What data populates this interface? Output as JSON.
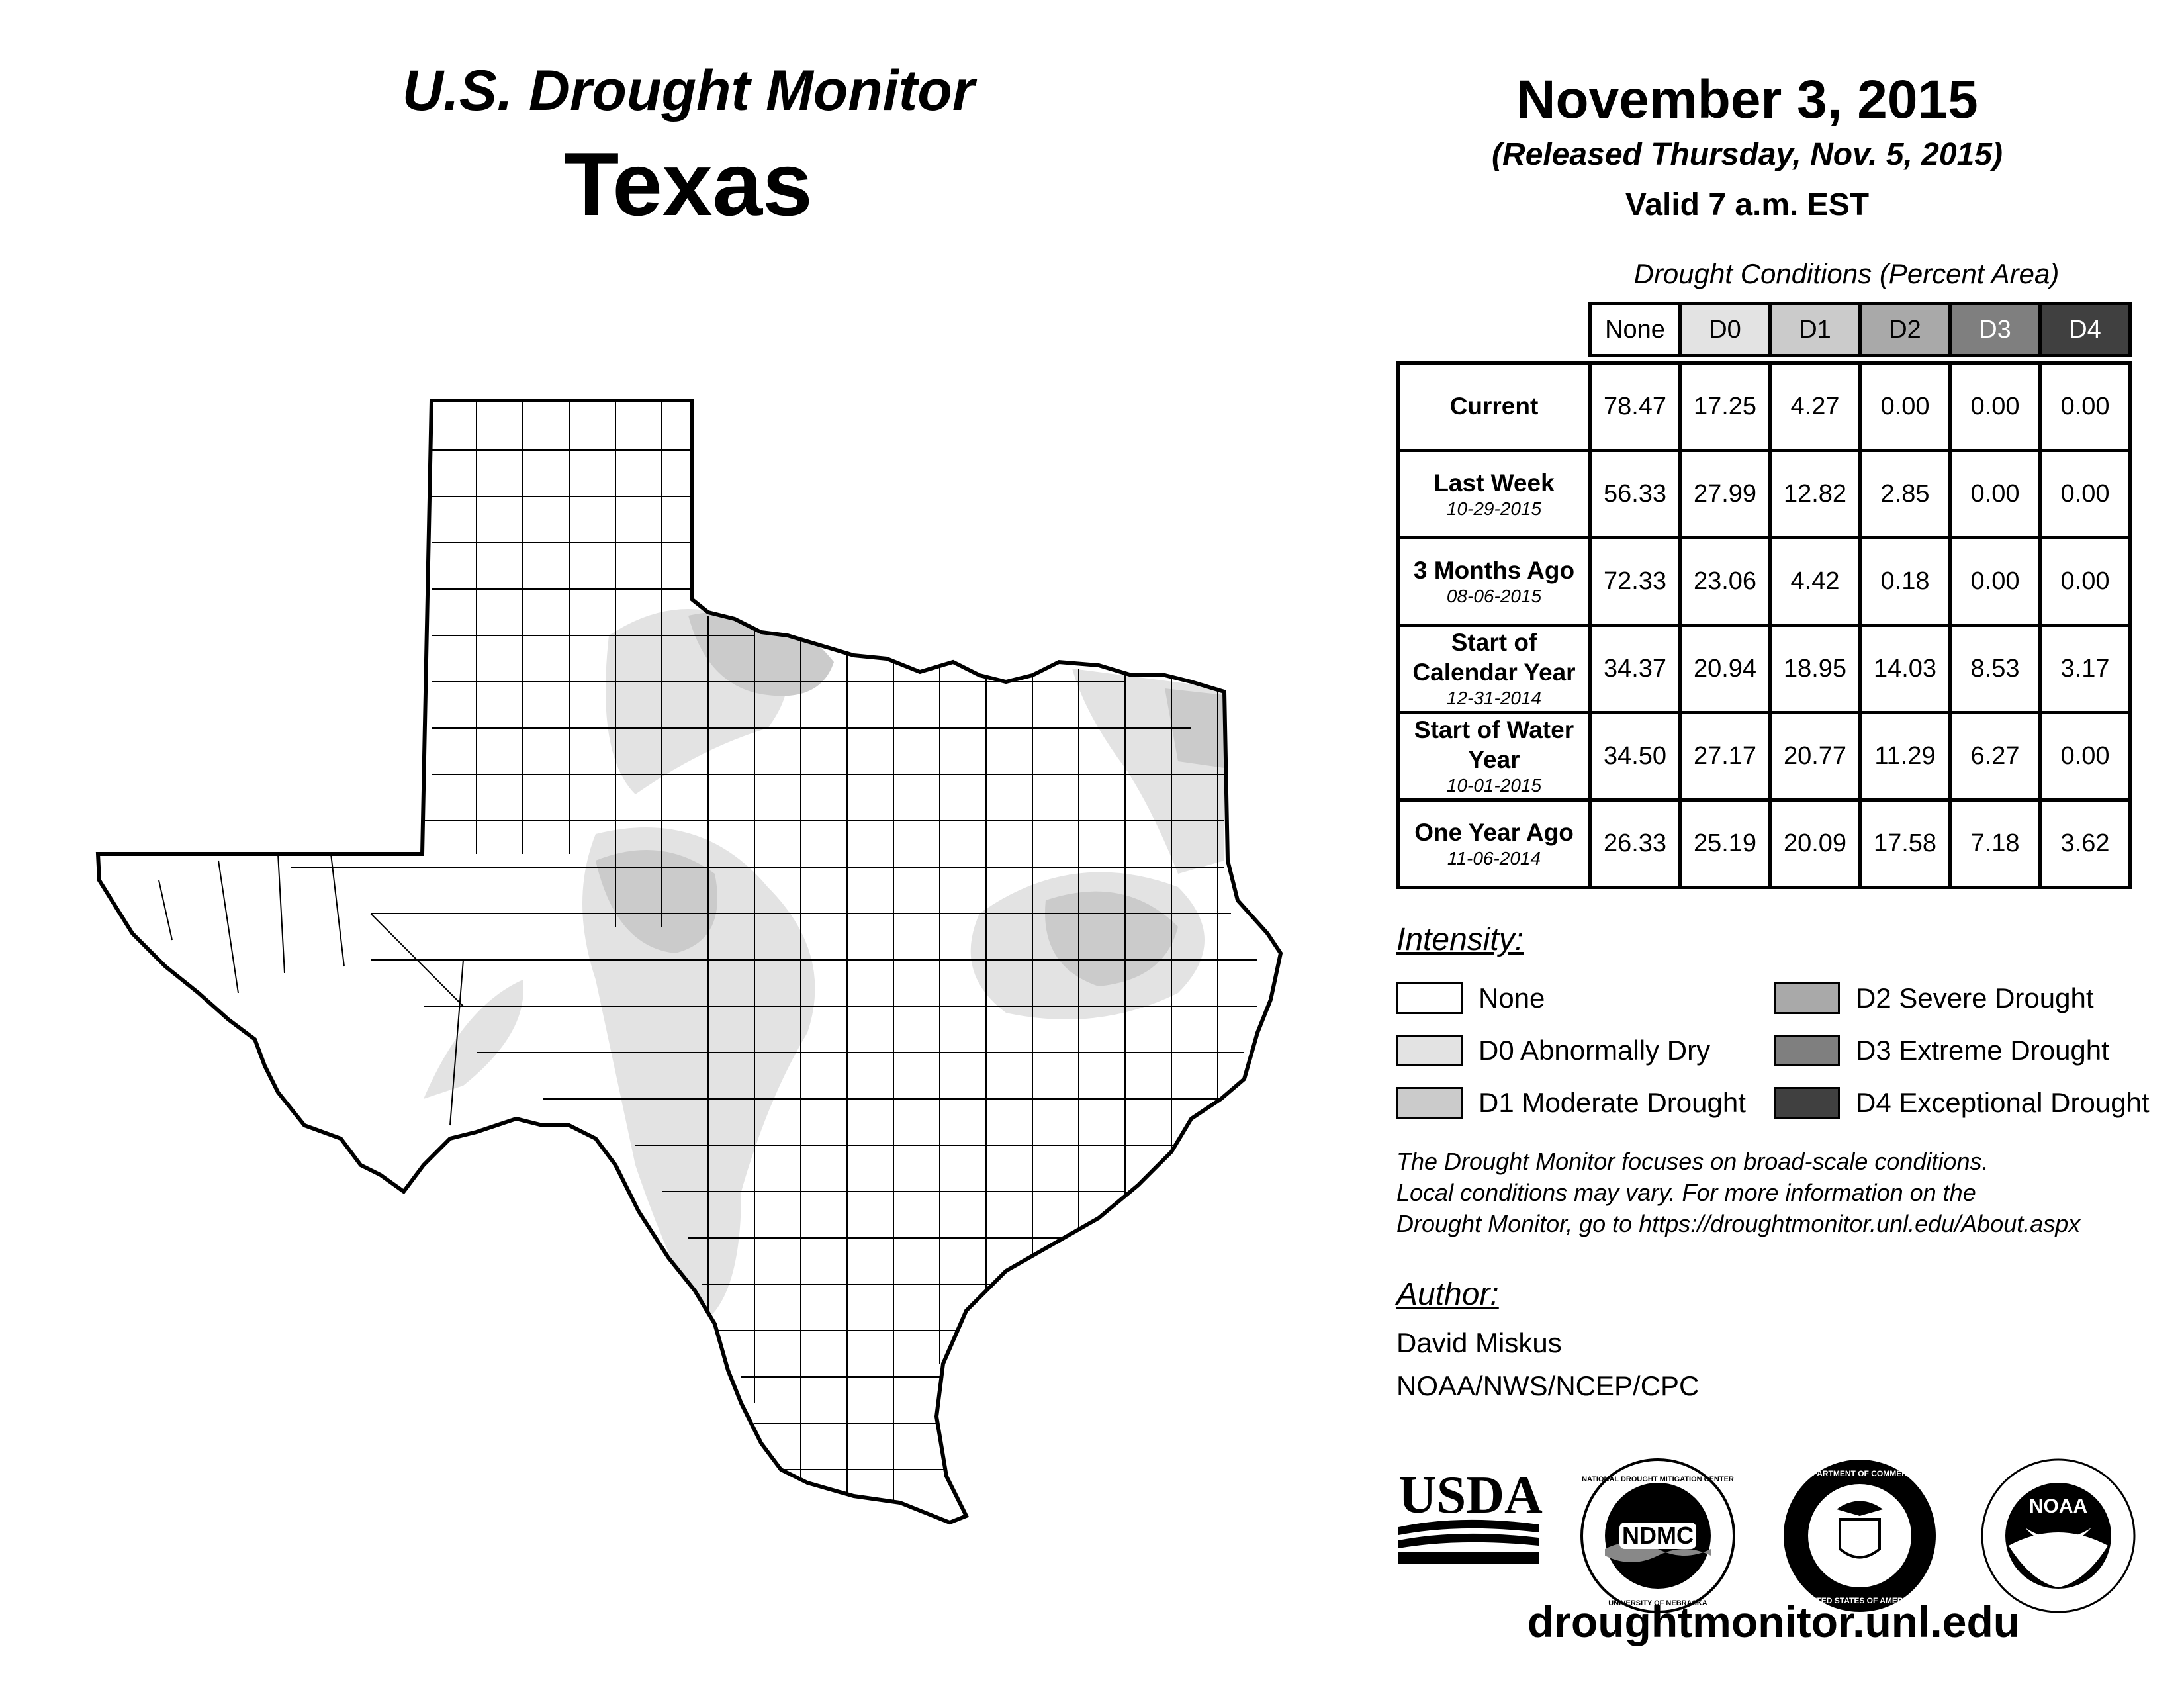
{
  "header": {
    "title": "U.S. Drought Monitor",
    "state": "Texas",
    "date": "November 3, 2015",
    "released": "(Released Thursday, Nov. 5, 2015)",
    "valid": "Valid 7 a.m. EST"
  },
  "table": {
    "caption": "Drought Conditions (Percent Area)",
    "columns": [
      "None",
      "D0",
      "D1",
      "D2",
      "D3",
      "D4"
    ],
    "column_colors": [
      "#ffffff",
      "#e3e3e3",
      "#cbcbcb",
      "#a9a9a9",
      "#7f7f7f",
      "#404040"
    ],
    "column_text_colors": [
      "#000000",
      "#000000",
      "#000000",
      "#000000",
      "#ffffff",
      "#ffffff"
    ],
    "rows": [
      {
        "label": "Current",
        "date": "",
        "values": [
          "78.47",
          "17.25",
          "4.27",
          "0.00",
          "0.00",
          "0.00"
        ]
      },
      {
        "label": "Last Week",
        "date": "10-29-2015",
        "values": [
          "56.33",
          "27.99",
          "12.82",
          "2.85",
          "0.00",
          "0.00"
        ]
      },
      {
        "label": "3 Months Ago",
        "date": "08-06-2015",
        "values": [
          "72.33",
          "23.06",
          "4.42",
          "0.18",
          "0.00",
          "0.00"
        ]
      },
      {
        "label": "Start of Calendar Year",
        "date": "12-31-2014",
        "values": [
          "34.37",
          "20.94",
          "18.95",
          "14.03",
          "8.53",
          "3.17"
        ]
      },
      {
        "label": "Start of Water Year",
        "date": "10-01-2015",
        "values": [
          "34.50",
          "27.17",
          "20.77",
          "11.29",
          "6.27",
          "0.00"
        ]
      },
      {
        "label": "One Year Ago",
        "date": "11-06-2014",
        "values": [
          "26.33",
          "25.19",
          "20.09",
          "17.58",
          "7.18",
          "3.62"
        ]
      }
    ]
  },
  "legend": {
    "title": "Intensity:",
    "items": [
      {
        "label": "None",
        "color": "#ffffff"
      },
      {
        "label": "D0 Abnormally Dry",
        "color": "#e3e3e3"
      },
      {
        "label": "D1 Moderate Drought",
        "color": "#cbcbcb"
      },
      {
        "label": "D2 Severe Drought",
        "color": "#a9a9a9"
      },
      {
        "label": "D3 Extreme Drought",
        "color": "#7f7f7f"
      },
      {
        "label": "D4 Exceptional Drought",
        "color": "#404040"
      }
    ]
  },
  "note": {
    "line1": "The Drought Monitor focuses on broad-scale conditions.",
    "line2": "Local conditions may vary. For more information on the",
    "line3": "Drought Monitor, go to https://droughtmonitor.unl.edu/About.aspx"
  },
  "author": {
    "title": "Author:",
    "name": "David Miskus",
    "org": "NOAA/NWS/NCEP/CPC"
  },
  "logos": {
    "usda": "USDA",
    "ndmc": "NDMC",
    "ndmc_top": "NATIONAL DROUGHT MITIGATION CENTER",
    "ndmc_bottom": "UNIVERSITY OF NEBRASKA",
    "doc": "DEPARTMENT OF COMMERCE",
    "doc_bottom": "UNITED STATES OF AMERICA",
    "noaa": "NOAA"
  },
  "url": "droughtmonitor.unl.edu"
}
